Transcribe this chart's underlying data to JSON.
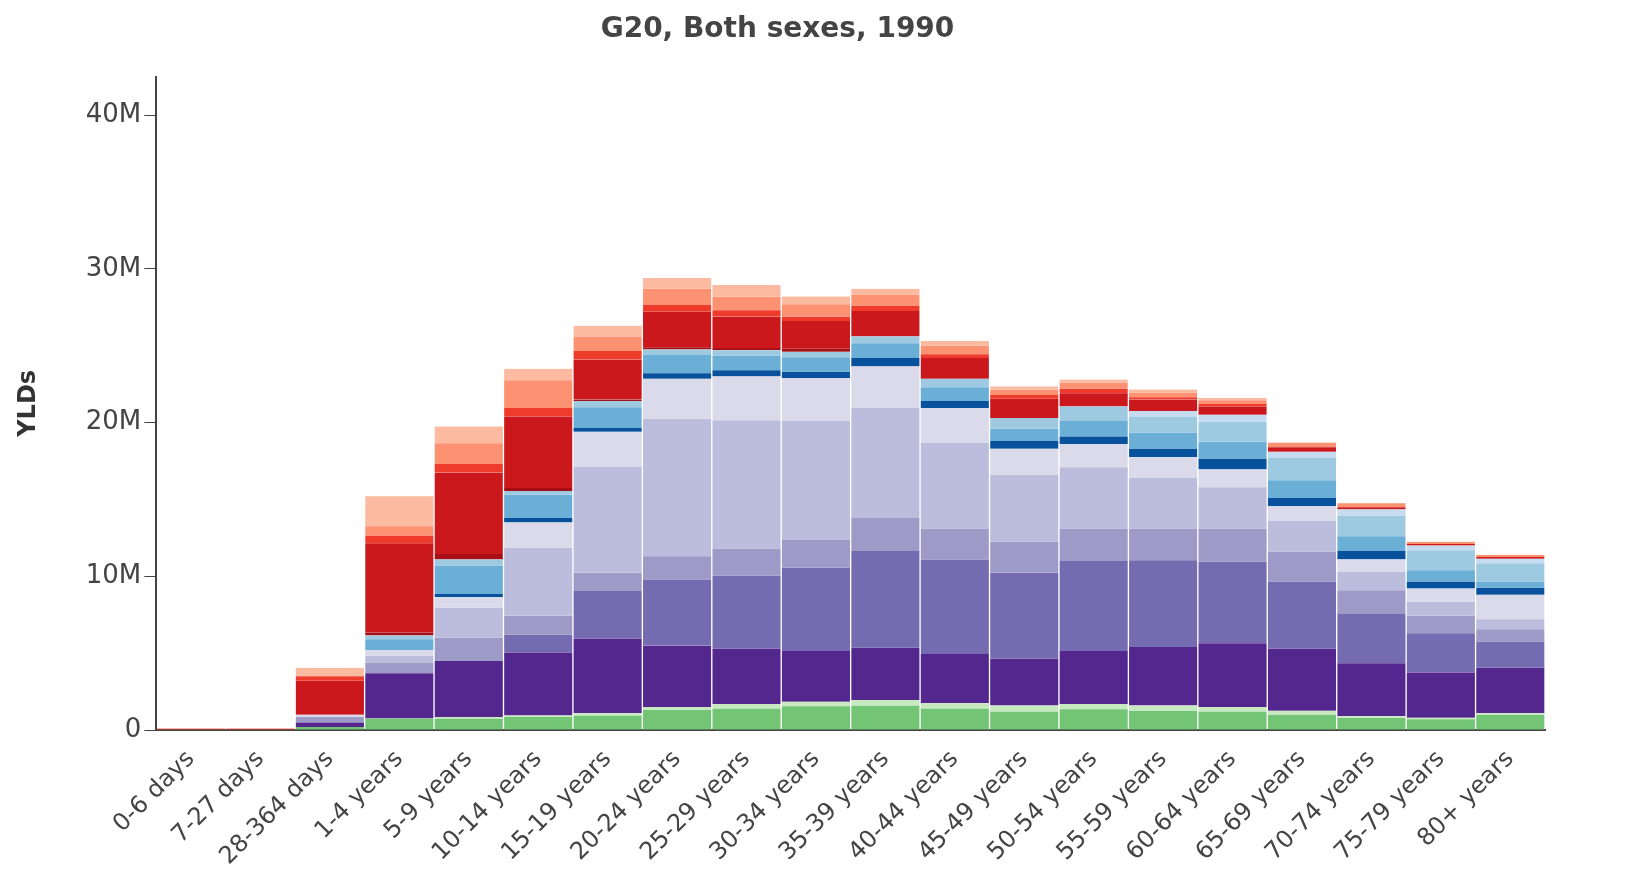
{
  "chart_data": {
    "type": "bar",
    "stacked": true,
    "title": "G20, Both sexes, 1990",
    "ylabel": "YLDs",
    "categories": [
      "0-6 days",
      "7-27 days",
      "28-364 days",
      "1-4 years",
      "5-9 years",
      "10-14 years",
      "15-19 years",
      "20-24 years",
      "25-29 years",
      "30-34 years",
      "35-39 years",
      "40-44 years",
      "45-49 years",
      "50-54 years",
      "55-59 years",
      "60-64 years",
      "65-69 years",
      "70-74 years",
      "75-79 years",
      "80+ years"
    ],
    "series": [
      {
        "color": "#74c476",
        "values": [
          0,
          0,
          0.2,
          0.75,
          0.75,
          0.85,
          0.95,
          1.3,
          1.4,
          1.55,
          1.6,
          1.4,
          1.2,
          1.35,
          1.25,
          1.2,
          1.0,
          0.8,
          0.7,
          1.0
        ]
      },
      {
        "color": "#c7e9c0",
        "values": [
          0,
          0,
          0,
          0,
          0.1,
          0.1,
          0.15,
          0.2,
          0.3,
          0.3,
          0.35,
          0.35,
          0.4,
          0.35,
          0.35,
          0.3,
          0.25,
          0.1,
          0.1,
          0.1
        ]
      },
      {
        "color": "#54278f",
        "values": [
          0,
          0,
          0.3,
          2.95,
          3.65,
          4.1,
          4.85,
          4.0,
          3.6,
          3.3,
          3.4,
          3.2,
          3.05,
          3.45,
          3.8,
          4.15,
          4.05,
          3.45,
          2.95,
          2.95
        ]
      },
      {
        "color": "#756bb1",
        "values": [
          0,
          0,
          0,
          0,
          0,
          1.15,
          3.1,
          4.3,
          4.75,
          5.4,
          6.3,
          6.15,
          5.6,
          5.85,
          5.65,
          5.3,
          4.35,
          3.2,
          2.55,
          1.7
        ]
      },
      {
        "color": "#9e9ac8",
        "values": [
          0,
          0,
          0.35,
          0.7,
          1.5,
          1.25,
          1.2,
          1.5,
          1.75,
          1.85,
          2.15,
          2.0,
          2.0,
          2.1,
          2.05,
          2.15,
          1.95,
          1.55,
          1.15,
          0.8
        ]
      },
      {
        "color": "#bcbddc",
        "values": [
          0,
          0,
          0,
          0.45,
          1.95,
          4.4,
          6.9,
          8.95,
          8.35,
          7.7,
          7.15,
          5.6,
          4.35,
          4.0,
          3.3,
          2.7,
          2.0,
          1.2,
          0.9,
          0.65
        ]
      },
      {
        "color": "#dadaeb",
        "values": [
          0,
          0,
          0.15,
          0.35,
          0.7,
          1.65,
          2.25,
          2.6,
          2.85,
          2.8,
          2.7,
          2.25,
          1.7,
          1.5,
          1.35,
          1.15,
          0.95,
          0.8,
          0.85,
          1.6
        ]
      },
      {
        "color": "#08519c",
        "values": [
          0,
          0,
          0,
          0,
          0.2,
          0.3,
          0.25,
          0.35,
          0.4,
          0.4,
          0.55,
          0.45,
          0.5,
          0.5,
          0.55,
          0.7,
          0.55,
          0.55,
          0.45,
          0.45
        ]
      },
      {
        "color": "#6baed6",
        "values": [
          0,
          0,
          0,
          0.7,
          1.85,
          1.5,
          1.35,
          1.2,
          0.95,
          0.95,
          0.95,
          0.9,
          0.8,
          1.0,
          1.05,
          1.1,
          1.15,
          0.95,
          0.75,
          0.4
        ]
      },
      {
        "color": "#9ecae1",
        "values": [
          0,
          0,
          0,
          0.25,
          0.4,
          0.25,
          0.4,
          0.35,
          0.35,
          0.35,
          0.45,
          0.55,
          0.7,
          0.95,
          1.05,
          1.3,
          1.45,
          1.35,
          1.3,
          1.2
        ]
      },
      {
        "color": "#c6dbef",
        "values": [
          0,
          0,
          0,
          0,
          0,
          0,
          0,
          0,
          0,
          0,
          0,
          0,
          0,
          0,
          0.35,
          0.45,
          0.4,
          0.4,
          0.3,
          0.3
        ]
      },
      {
        "color": "#a50f15",
        "values": [
          0,
          0,
          0,
          0.2,
          0.35,
          0.2,
          0.1,
          0.15,
          0.15,
          0.2,
          0,
          0,
          0,
          0,
          0,
          0,
          0,
          0,
          0,
          0
        ]
      },
      {
        "color": "#cb181d",
        "values": [
          0,
          0,
          2.2,
          5.8,
          5.3,
          4.65,
          2.6,
          2.3,
          2.05,
          1.8,
          1.65,
          1.35,
          1.25,
          0.85,
          0.75,
          0.55,
          0.3,
          0.15,
          0.1,
          0.1
        ]
      },
      {
        "color": "#ef3b2c",
        "values": [
          0.1,
          0.1,
          0.3,
          0.5,
          0.55,
          0.55,
          0.55,
          0.45,
          0.4,
          0.3,
          0.35,
          0.25,
          0.25,
          0.3,
          0.15,
          0.15,
          0,
          0,
          0,
          0
        ]
      },
      {
        "color": "#fc9272",
        "values": [
          0,
          0,
          0,
          0.6,
          1.35,
          1.8,
          0.95,
          1.05,
          0.9,
          0.8,
          0.7,
          0.55,
          0.35,
          0.4,
          0.3,
          0.25,
          0.3,
          0.25,
          0.15,
          0.15
        ]
      },
      {
        "color": "#fcbba1",
        "values": [
          0,
          0,
          0.55,
          1.95,
          1.1,
          0.75,
          0.7,
          0.7,
          0.75,
          0.5,
          0.4,
          0.3,
          0.2,
          0.2,
          0.2,
          0.15,
          0,
          0,
          0,
          0
        ]
      }
    ],
    "ylim": [
      0,
      42.5
    ],
    "yticks": [
      {
        "value": 0,
        "label": "0"
      },
      {
        "value": 10,
        "label": "10M"
      },
      {
        "value": 20,
        "label": "20M"
      },
      {
        "value": 30,
        "label": "30M"
      },
      {
        "value": 40,
        "label": "40M"
      }
    ],
    "grid": false,
    "legend": false
  }
}
